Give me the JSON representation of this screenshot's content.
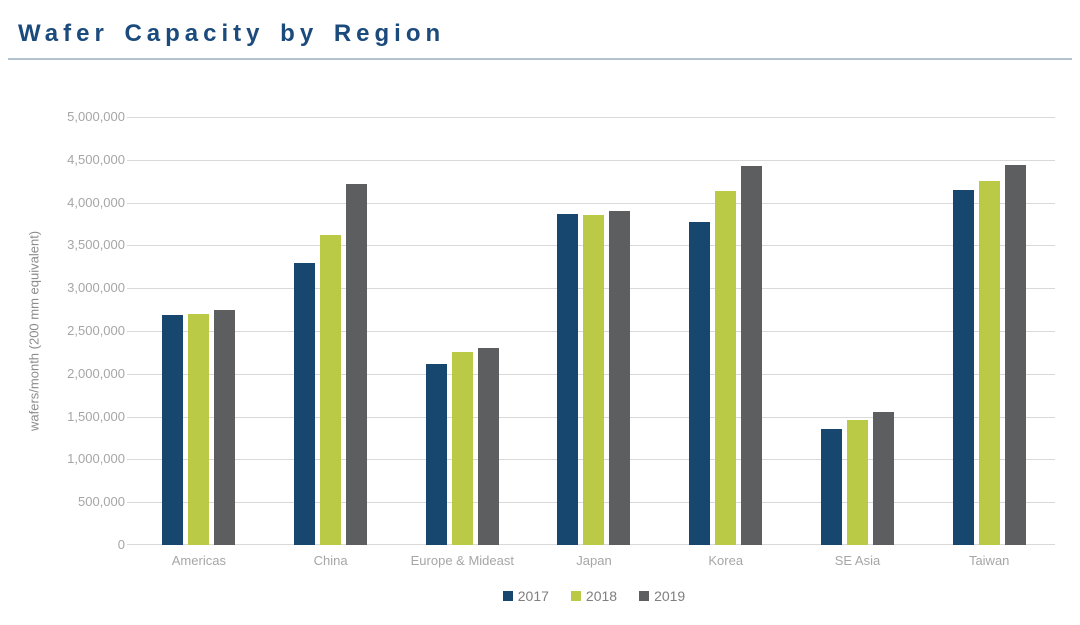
{
  "page": {
    "title": "Wafer Capacity by Region"
  },
  "chart_data": {
    "type": "bar",
    "title": "Wafer Capacity by Region",
    "categories": [
      "Americas",
      "China",
      "Europe & Mideast",
      "Japan",
      "Korea",
      "SE Asia",
      "Taiwan"
    ],
    "series": [
      {
        "name": "2017",
        "color": "#17466F",
        "values": [
          2690000,
          3300000,
          2120000,
          3870000,
          3770000,
          1350000,
          4150000
        ]
      },
      {
        "name": "2018",
        "color": "#BBCA46",
        "values": [
          2700000,
          3620000,
          2260000,
          3860000,
          4140000,
          1460000,
          4250000
        ]
      },
      {
        "name": "2019",
        "color": "#5C5E60",
        "values": [
          2750000,
          4220000,
          2300000,
          3900000,
          4430000,
          1550000,
          4440000
        ]
      }
    ],
    "ylabel": "wafers/month (200 mm equivalent)",
    "ylim": [
      0,
      5000000
    ],
    "ytick_step": 500000,
    "ytick_labels": [
      "0",
      "500,000",
      "1,000,000",
      "1,500,000",
      "2,000,000",
      "2,500,000",
      "3,000,000",
      "3,500,000",
      "4,000,000",
      "4,500,000",
      "5,000,000"
    ],
    "grid": true,
    "legend_position": "bottom"
  },
  "colors": {
    "title_text": "#1B4B7C",
    "title_rule": "#B3C2CF",
    "gridline": "#D9D9D9",
    "axis_text": "#A6A6A6",
    "legend_text": "#7F7F7F"
  }
}
